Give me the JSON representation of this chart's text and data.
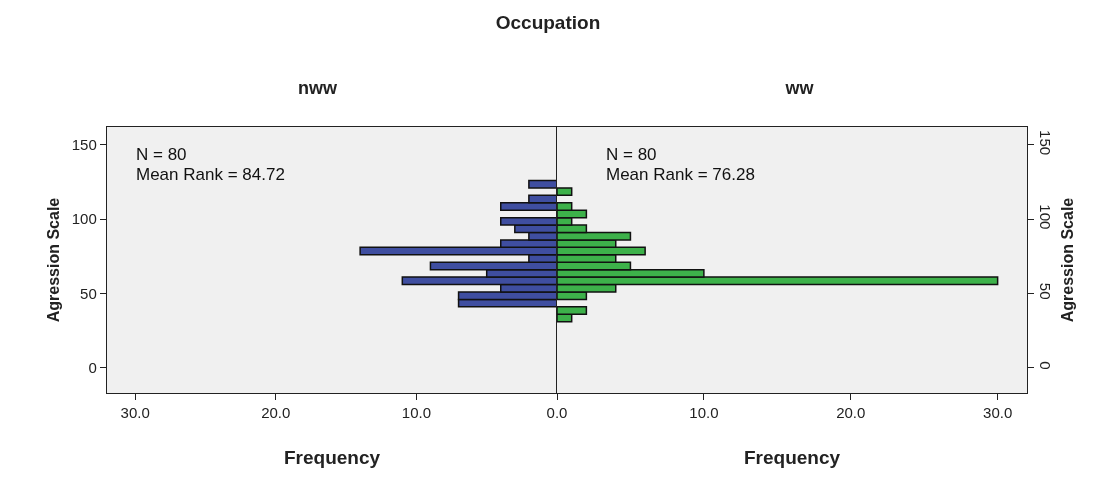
{
  "chart_data": [
    {
      "type": "histogram",
      "orientation": "horizontal",
      "title": "Occupation",
      "subtitle": "nww",
      "xlabel": "Frequency",
      "ylabel": "Agression Scale",
      "bins": [
        31,
        36,
        41,
        46,
        51,
        56,
        61,
        66,
        71,
        76,
        81,
        86,
        91,
        96,
        101,
        106,
        111,
        116,
        121,
        126
      ],
      "values": [
        0,
        0,
        7,
        7,
        4,
        11,
        5,
        9,
        2,
        14,
        4,
        2,
        3,
        4,
        0,
        4,
        2,
        0,
        2
      ],
      "color": "#3f4ea0",
      "xlim": [
        32,
        0
      ],
      "xticks": [
        {
          "value": 30,
          "label": "30.0"
        },
        {
          "value": 20,
          "label": "20.0"
        },
        {
          "value": 10,
          "label": "10.0"
        },
        {
          "value": 0,
          "label": "0.0"
        }
      ],
      "ylim": [
        -17,
        162
      ],
      "yticks": [
        0,
        50,
        100,
        150
      ],
      "annotations": [
        "N = 80",
        "Mean Rank = 84.72"
      ],
      "grid": false
    },
    {
      "type": "histogram",
      "orientation": "horizontal",
      "subtitle": "ww",
      "xlabel": "Frequency",
      "ylabel": "Agression Scale",
      "bins": [
        31,
        36,
        41,
        46,
        51,
        56,
        61,
        66,
        71,
        76,
        81,
        86,
        91,
        96,
        101,
        106,
        111,
        116,
        121,
        126
      ],
      "values": [
        1,
        2,
        0,
        2,
        4,
        30,
        10,
        5,
        4,
        6,
        4,
        5,
        2,
        1,
        2,
        1,
        0,
        1,
        0
      ],
      "color": "#3db14a",
      "xlim": [
        0,
        32
      ],
      "xticks": [
        {
          "value": 0,
          "label": null
        },
        {
          "value": 10,
          "label": "10.0"
        },
        {
          "value": 20,
          "label": "20.0"
        },
        {
          "value": 30,
          "label": "30.0"
        }
      ],
      "ylim": [
        -17,
        162
      ],
      "yticks": [
        0,
        50,
        100,
        150
      ],
      "annotations": [
        "N = 80",
        "Mean Rank = 76.28"
      ],
      "grid": false
    }
  ]
}
